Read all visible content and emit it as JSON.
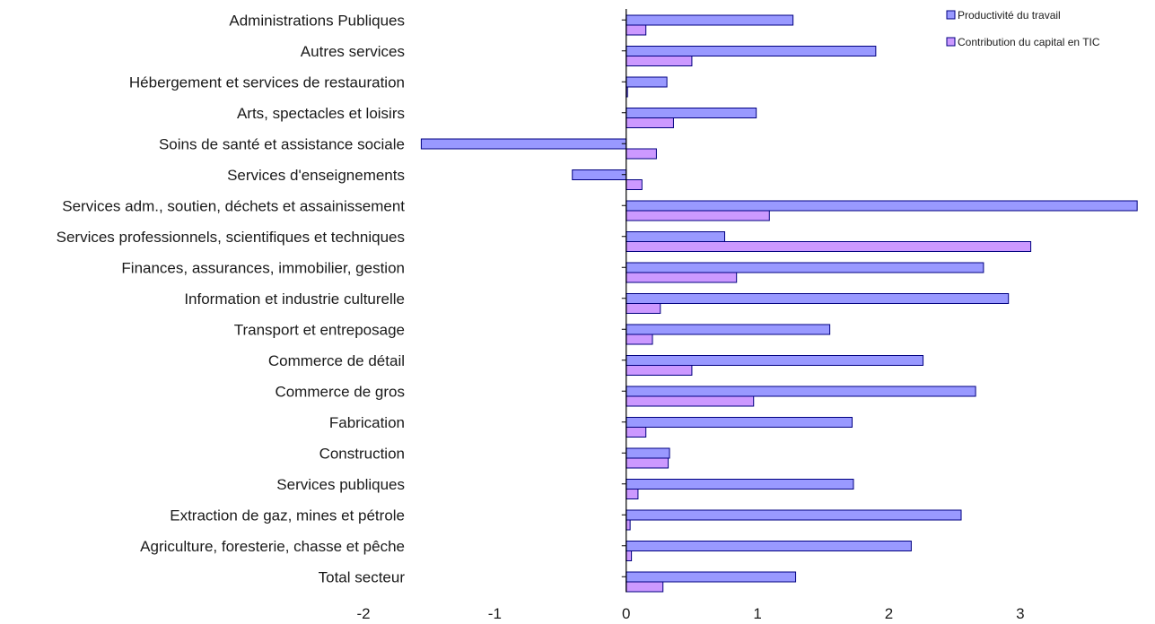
{
  "chart_data": {
    "type": "bar",
    "orientation": "horizontal",
    "categories": [
      "Administrations Publiques",
      "Autres services",
      "Hébergement et services de restauration",
      "Arts, spectacles et loisirs",
      "Soins de santé et assistance sociale",
      "Services d'enseignements",
      "Services adm., soutien, déchets et assainissement",
      "Services professionnels, scientifiques et techniques",
      "Finances, assurances, immobilier, gestion",
      "Information et industrie culturelle",
      "Transport et entreposage",
      "Commerce de détail",
      "Commerce de gros",
      "Fabrication",
      "Construction",
      "Services publiques",
      "Extraction de gaz, mines et pétrole",
      "Agriculture, foresterie, chasse et pêche",
      "Total secteur"
    ],
    "series": [
      {
        "name": "Productivité du travail",
        "color": "#9999ff",
        "values": [
          1.27,
          1.9,
          0.31,
          0.99,
          -1.56,
          -0.41,
          3.89,
          0.75,
          2.72,
          2.91,
          1.55,
          2.26,
          2.66,
          1.72,
          0.33,
          1.73,
          2.55,
          2.17,
          1.29
        ]
      },
      {
        "name": "Contribution du capital en TIC",
        "color": "#cc99ff",
        "values": [
          0.15,
          0.5,
          0.01,
          0.36,
          0.23,
          0.12,
          1.09,
          3.08,
          0.84,
          0.26,
          0.2,
          0.5,
          0.97,
          0.15,
          0.32,
          0.09,
          0.03,
          0.04,
          0.28
        ]
      }
    ],
    "xlim": [
      -2,
      3.93
    ],
    "xticks": [
      "-2",
      "-1",
      "0",
      "1",
      "2",
      "3"
    ],
    "xtick_values": [
      -2,
      -1,
      0,
      1,
      2,
      3
    ],
    "title": "",
    "xlabel": "",
    "ylabel": "",
    "legend_position": "top-right",
    "grid": false
  }
}
